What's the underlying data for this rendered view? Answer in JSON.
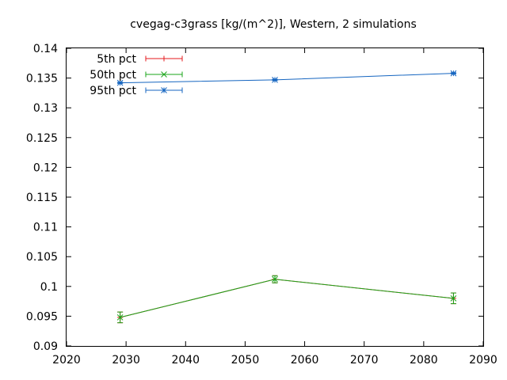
{
  "chart_data": {
    "type": "line",
    "title": "cvegag-c3grass [kg/(m^2)], Western, 2 simulations",
    "xlabel": "",
    "ylabel": "",
    "xlim": [
      2020,
      2090
    ],
    "ylim": [
      0.09,
      0.14
    ],
    "xticks": [
      "2020",
      "2030",
      "2040",
      "2050",
      "2060",
      "2070",
      "2080",
      "2090"
    ],
    "yticks": [
      "0.09",
      "0.095",
      "0.1",
      "0.105",
      "0.11",
      "0.115",
      "0.12",
      "0.125",
      "0.13",
      "0.135",
      "0.14"
    ],
    "grid": false,
    "legend_position": "top-left",
    "x": [
      2029,
      2055,
      2085
    ],
    "series": [
      {
        "name": "5th pct",
        "color": "#e41a1c",
        "marker": "plus",
        "values": [
          0.0948,
          0.1012,
          0.098
        ],
        "err": [
          0.0009,
          0.0006,
          0.0009
        ]
      },
      {
        "name": "50th pct",
        "color": "#1aa51a",
        "marker": "cross",
        "values": [
          0.0948,
          0.1012,
          0.098
        ],
        "err": [
          0.0009,
          0.0006,
          0.0009
        ]
      },
      {
        "name": "95th pct",
        "color": "#1565c0",
        "marker": "star",
        "values": [
          0.1342,
          0.1347,
          0.1358
        ],
        "err": [
          0.0001,
          0.0001,
          0.0001
        ]
      }
    ]
  }
}
